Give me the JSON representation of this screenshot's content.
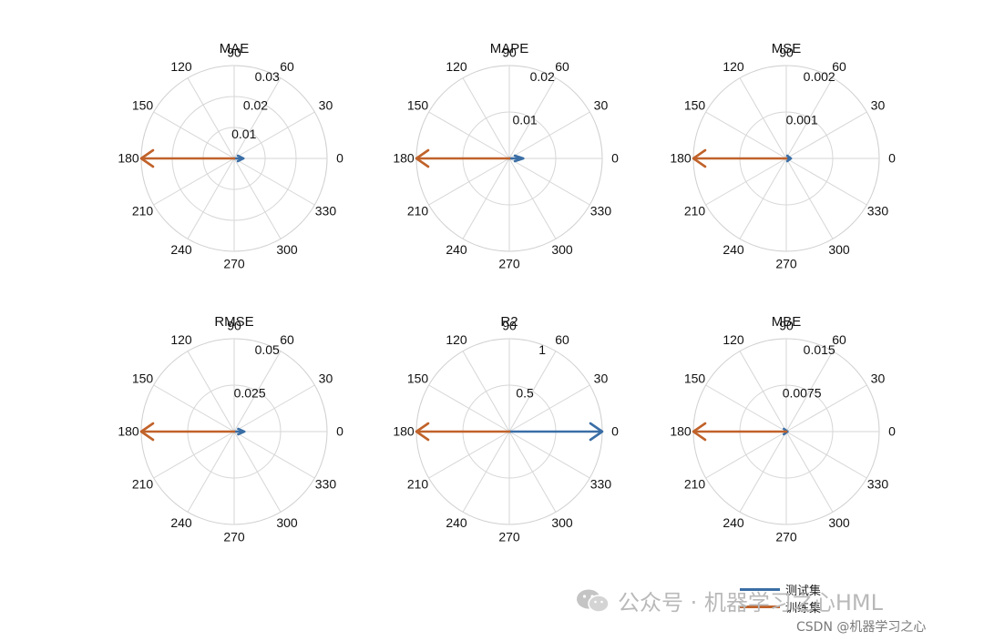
{
  "watermark": {
    "text": "公众号 · 机器学习之心HML",
    "icon": "wechat-icon"
  },
  "credit": {
    "text": "CSDN @机器学习之心"
  },
  "legend": [
    {
      "label": "测试集",
      "color": "#3a6ea5"
    },
    {
      "label": "训练集",
      "color": "#c0622a"
    }
  ],
  "chart_data": [
    {
      "type": "polar-compass",
      "title": "MAE",
      "angle_ticks": [
        "0",
        "30",
        "60",
        "90",
        "120",
        "150",
        "180",
        "210",
        "240",
        "270",
        "300",
        "330"
      ],
      "r_ticks": [
        "0.01",
        "0.02",
        "0.03"
      ],
      "rmax": 0.03,
      "series": [
        {
          "name": "测试集",
          "angle": 0,
          "value": 0.003
        },
        {
          "name": "训练集",
          "angle": 180,
          "value": 0.03
        }
      ]
    },
    {
      "type": "polar-compass",
      "title": "MAPE",
      "angle_ticks": [
        "0",
        "30",
        "60",
        "90",
        "120",
        "150",
        "180",
        "210",
        "240",
        "270",
        "300",
        "330"
      ],
      "r_ticks": [
        "0.01",
        "0.02"
      ],
      "rmax": 0.02,
      "series": [
        {
          "name": "测试集",
          "angle": 0,
          "value": 0.003
        },
        {
          "name": "训练集",
          "angle": 180,
          "value": 0.02
        }
      ]
    },
    {
      "type": "polar-compass",
      "title": "MSE",
      "angle_ticks": [
        "0",
        "30",
        "60",
        "90",
        "120",
        "150",
        "180",
        "210",
        "240",
        "270",
        "300",
        "330"
      ],
      "r_ticks": [
        "0.001",
        "0.002"
      ],
      "rmax": 0.002,
      "series": [
        {
          "name": "测试集",
          "angle": 0,
          "value": 0.0001
        },
        {
          "name": "训练集",
          "angle": 180,
          "value": 0.002
        }
      ]
    },
    {
      "type": "polar-compass",
      "title": "RMSE",
      "angle_ticks": [
        "0",
        "30",
        "60",
        "90",
        "120",
        "150",
        "180",
        "210",
        "240",
        "270",
        "300",
        "330"
      ],
      "r_ticks": [
        "0.025",
        "0.05"
      ],
      "rmax": 0.05,
      "series": [
        {
          "name": "测试集",
          "angle": 0,
          "value": 0.0055
        },
        {
          "name": "训练集",
          "angle": 180,
          "value": 0.05
        }
      ]
    },
    {
      "type": "polar-compass",
      "title": "R2",
      "angle_ticks": [
        "0",
        "30",
        "60",
        "90",
        "120",
        "150",
        "180",
        "210",
        "240",
        "270",
        "300",
        "330"
      ],
      "r_ticks": [
        "0.5",
        "1"
      ],
      "rmax": 1,
      "series": [
        {
          "name": "测试集",
          "angle": 0,
          "value": 1
        },
        {
          "name": "训练集",
          "angle": 180,
          "value": 1
        }
      ]
    },
    {
      "type": "polar-compass",
      "title": "MBE",
      "angle_ticks": [
        "0",
        "30",
        "60",
        "90",
        "120",
        "150",
        "180",
        "210",
        "240",
        "270",
        "300",
        "330"
      ],
      "r_ticks": [
        "0.0075",
        "0.015"
      ],
      "rmax": 0.015,
      "series": [
        {
          "name": "测试集",
          "angle": 0,
          "value": 0.0002
        },
        {
          "name": "训练集",
          "angle": 180,
          "value": 0.015
        }
      ]
    }
  ]
}
